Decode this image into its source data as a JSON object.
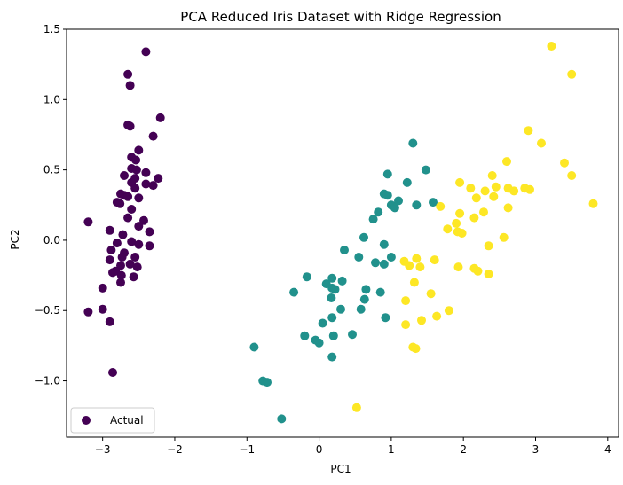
{
  "chart_data": {
    "type": "scatter",
    "title": "PCA Reduced Iris Dataset with Ridge Regression",
    "xlabel": "PC1",
    "ylabel": "PC2",
    "xlim": [
      -3.5,
      4.15
    ],
    "ylim": [
      -1.4,
      1.5
    ],
    "xticks": [
      -3,
      -2,
      -1,
      0,
      1,
      2,
      3,
      4
    ],
    "yticks": [
      -1.0,
      -0.5,
      0.0,
      0.5,
      1.0,
      1.5
    ],
    "xtick_labels": [
      "−3",
      "−2",
      "−1",
      "0",
      "1",
      "2",
      "3",
      "4"
    ],
    "ytick_labels": [
      "−1.0",
      "−0.5",
      "0.0",
      "0.5",
      "1.0",
      "1.5"
    ],
    "grid": false,
    "legend": {
      "placement": "lower-left",
      "entries": [
        "Actual"
      ]
    },
    "series": [
      {
        "color": "#440154",
        "points": [
          [
            -2.4,
            1.34
          ],
          [
            -2.65,
            1.18
          ],
          [
            -2.62,
            1.1
          ],
          [
            -2.2,
            0.87
          ],
          [
            -2.65,
            0.82
          ],
          [
            -2.62,
            0.81
          ],
          [
            -2.3,
            0.74
          ],
          [
            -2.5,
            0.64
          ],
          [
            -2.6,
            0.59
          ],
          [
            -2.54,
            0.57
          ],
          [
            -2.6,
            0.51
          ],
          [
            -2.53,
            0.5
          ],
          [
            -2.4,
            0.48
          ],
          [
            -2.7,
            0.46
          ],
          [
            -2.55,
            0.44
          ],
          [
            -2.23,
            0.44
          ],
          [
            -2.6,
            0.41
          ],
          [
            -2.4,
            0.4
          ],
          [
            -2.3,
            0.39
          ],
          [
            -2.55,
            0.37
          ],
          [
            -2.75,
            0.33
          ],
          [
            -2.7,
            0.32
          ],
          [
            -2.65,
            0.31
          ],
          [
            -2.5,
            0.3
          ],
          [
            -2.8,
            0.27
          ],
          [
            -2.76,
            0.26
          ],
          [
            -2.6,
            0.22
          ],
          [
            -2.65,
            0.16
          ],
          [
            -2.43,
            0.14
          ],
          [
            -2.5,
            0.1
          ],
          [
            -2.9,
            0.07
          ],
          [
            -2.35,
            0.06
          ],
          [
            -2.72,
            0.04
          ],
          [
            -2.6,
            -0.01
          ],
          [
            -2.8,
            -0.02
          ],
          [
            -2.5,
            -0.03
          ],
          [
            -3.2,
            0.13
          ],
          [
            -2.35,
            -0.04
          ],
          [
            -2.88,
            -0.07
          ],
          [
            -2.7,
            -0.09
          ],
          [
            -2.73,
            -0.12
          ],
          [
            -2.55,
            -0.12
          ],
          [
            -2.9,
            -0.14
          ],
          [
            -2.62,
            -0.17
          ],
          [
            -2.75,
            -0.18
          ],
          [
            -2.52,
            -0.19
          ],
          [
            -2.82,
            -0.22
          ],
          [
            -2.86,
            -0.23
          ],
          [
            -2.74,
            -0.25
          ],
          [
            -2.57,
            -0.26
          ],
          [
            -2.75,
            -0.3
          ],
          [
            -3.0,
            -0.34
          ],
          [
            -3.2,
            -0.51
          ],
          [
            -3.0,
            -0.49
          ],
          [
            -2.9,
            -0.58
          ],
          [
            -2.86,
            -0.94
          ]
        ]
      },
      {
        "color": "#21918c",
        "points": [
          [
            1.3,
            0.69
          ],
          [
            1.48,
            0.5
          ],
          [
            0.95,
            0.47
          ],
          [
            1.22,
            0.41
          ],
          [
            0.9,
            0.33
          ],
          [
            0.95,
            0.32
          ],
          [
            1.35,
            0.25
          ],
          [
            1.58,
            0.27
          ],
          [
            1.0,
            0.25
          ],
          [
            1.1,
            0.28
          ],
          [
            1.05,
            0.23
          ],
          [
            0.82,
            0.2
          ],
          [
            0.75,
            0.15
          ],
          [
            0.62,
            0.02
          ],
          [
            0.9,
            -0.03
          ],
          [
            0.35,
            -0.07
          ],
          [
            1.0,
            -0.12
          ],
          [
            0.55,
            -0.12
          ],
          [
            0.78,
            -0.16
          ],
          [
            0.9,
            -0.17
          ],
          [
            -0.17,
            -0.26
          ],
          [
            0.18,
            -0.27
          ],
          [
            0.32,
            -0.29
          ],
          [
            0.1,
            -0.31
          ],
          [
            0.18,
            -0.34
          ],
          [
            0.22,
            -0.35
          ],
          [
            0.65,
            -0.35
          ],
          [
            0.85,
            -0.37
          ],
          [
            -0.35,
            -0.37
          ],
          [
            0.17,
            -0.41
          ],
          [
            0.63,
            -0.42
          ],
          [
            0.58,
            -0.49
          ],
          [
            0.3,
            -0.49
          ],
          [
            0.18,
            -0.55
          ],
          [
            0.92,
            -0.55
          ],
          [
            0.05,
            -0.59
          ],
          [
            0.46,
            -0.67
          ],
          [
            0.2,
            -0.68
          ],
          [
            -0.2,
            -0.68
          ],
          [
            -0.05,
            -0.71
          ],
          [
            0.0,
            -0.73
          ],
          [
            -0.9,
            -0.76
          ],
          [
            0.18,
            -0.83
          ],
          [
            -0.78,
            -1.0
          ],
          [
            -0.72,
            -1.01
          ],
          [
            -0.52,
            -1.27
          ]
        ]
      },
      {
        "color": "#fde725",
        "points": [
          [
            3.22,
            1.38
          ],
          [
            3.5,
            1.18
          ],
          [
            2.9,
            0.78
          ],
          [
            3.08,
            0.69
          ],
          [
            2.6,
            0.56
          ],
          [
            3.4,
            0.55
          ],
          [
            3.5,
            0.46
          ],
          [
            2.4,
            0.46
          ],
          [
            1.95,
            0.41
          ],
          [
            2.45,
            0.38
          ],
          [
            2.1,
            0.37
          ],
          [
            2.62,
            0.37
          ],
          [
            2.85,
            0.37
          ],
          [
            2.92,
            0.36
          ],
          [
            2.3,
            0.35
          ],
          [
            2.7,
            0.35
          ],
          [
            2.42,
            0.31
          ],
          [
            2.18,
            0.3
          ],
          [
            3.8,
            0.26
          ],
          [
            1.68,
            0.24
          ],
          [
            2.62,
            0.23
          ],
          [
            2.28,
            0.2
          ],
          [
            1.95,
            0.19
          ],
          [
            2.15,
            0.16
          ],
          [
            1.9,
            0.12
          ],
          [
            1.78,
            0.08
          ],
          [
            1.92,
            0.06
          ],
          [
            1.98,
            0.05
          ],
          [
            2.56,
            0.02
          ],
          [
            2.35,
            -0.04
          ],
          [
            1.18,
            -0.15
          ],
          [
            1.35,
            -0.13
          ],
          [
            1.6,
            -0.14
          ],
          [
            1.25,
            -0.18
          ],
          [
            1.4,
            -0.19
          ],
          [
            1.93,
            -0.19
          ],
          [
            2.15,
            -0.2
          ],
          [
            2.2,
            -0.22
          ],
          [
            2.35,
            -0.24
          ],
          [
            1.32,
            -0.3
          ],
          [
            1.55,
            -0.38
          ],
          [
            1.2,
            -0.43
          ],
          [
            1.8,
            -0.5
          ],
          [
            1.63,
            -0.54
          ],
          [
            1.42,
            -0.57
          ],
          [
            1.2,
            -0.6
          ],
          [
            1.3,
            -0.76
          ],
          [
            1.34,
            -0.77
          ],
          [
            0.52,
            -1.19
          ]
        ]
      }
    ]
  }
}
